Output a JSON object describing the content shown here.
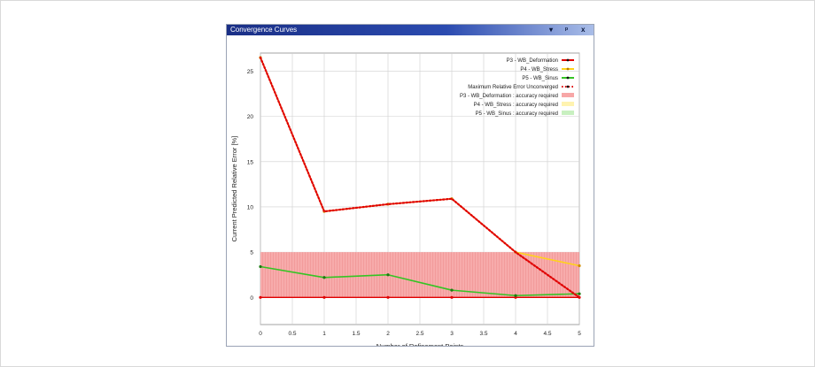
{
  "window": {
    "title": "Convergence Curves",
    "controls": [
      "▾",
      "ᵖ",
      "x"
    ]
  },
  "colors": {
    "deformation": "#e00000",
    "stress": "#ffd21a",
    "sinus": "#35c424",
    "max_unconverged": "#e00000",
    "band_deformation": "#f7a7a7",
    "band_stress": "#fff3b0",
    "band_sinus": "#c8f0c0"
  },
  "chart_data": {
    "type": "line",
    "xlabel": "Number of Refinement Points",
    "ylabel": "Current Predicted Relative Error [%]",
    "xlim": [
      0,
      5
    ],
    "ylim": [
      -3,
      27
    ],
    "xticks": [
      "0",
      "0.5",
      "1",
      "1.5",
      "2",
      "2.5",
      "3",
      "3.5",
      "4",
      "4.5",
      "5"
    ],
    "yticks": [
      "0",
      "5",
      "10",
      "15",
      "20",
      "25"
    ],
    "grid": true,
    "legend_position": "top-right",
    "accuracy_band": [
      0,
      5
    ],
    "series": [
      {
        "name": "P3 - WB_Deformation",
        "x": [
          0,
          1,
          2,
          3,
          4,
          5
        ],
        "y": [
          0,
          0,
          0,
          0,
          0,
          0
        ]
      },
      {
        "name": "P4 - WB_Stress",
        "x": [
          0,
          1,
          2,
          3,
          4,
          5
        ],
        "y": [
          26.5,
          9.5,
          10.3,
          10.9,
          5.0,
          3.5
        ]
      },
      {
        "name": "P5 - WB_Sinus",
        "x": [
          0,
          1,
          2,
          3,
          4,
          5
        ],
        "y": [
          3.4,
          2.2,
          2.5,
          0.8,
          0.2,
          0.4
        ]
      },
      {
        "name": "Maximum Relative Error Unconverged",
        "x": [
          0,
          1,
          2,
          3,
          4,
          5
        ],
        "y": [
          26.5,
          9.5,
          10.3,
          10.9,
          5.0,
          0
        ]
      }
    ],
    "legend_extra": [
      "P3 - WB_Deformation : accuracy required",
      "P4 - WB_Stress : accuracy required",
      "P5 - WB_Sinus : accuracy required"
    ]
  }
}
